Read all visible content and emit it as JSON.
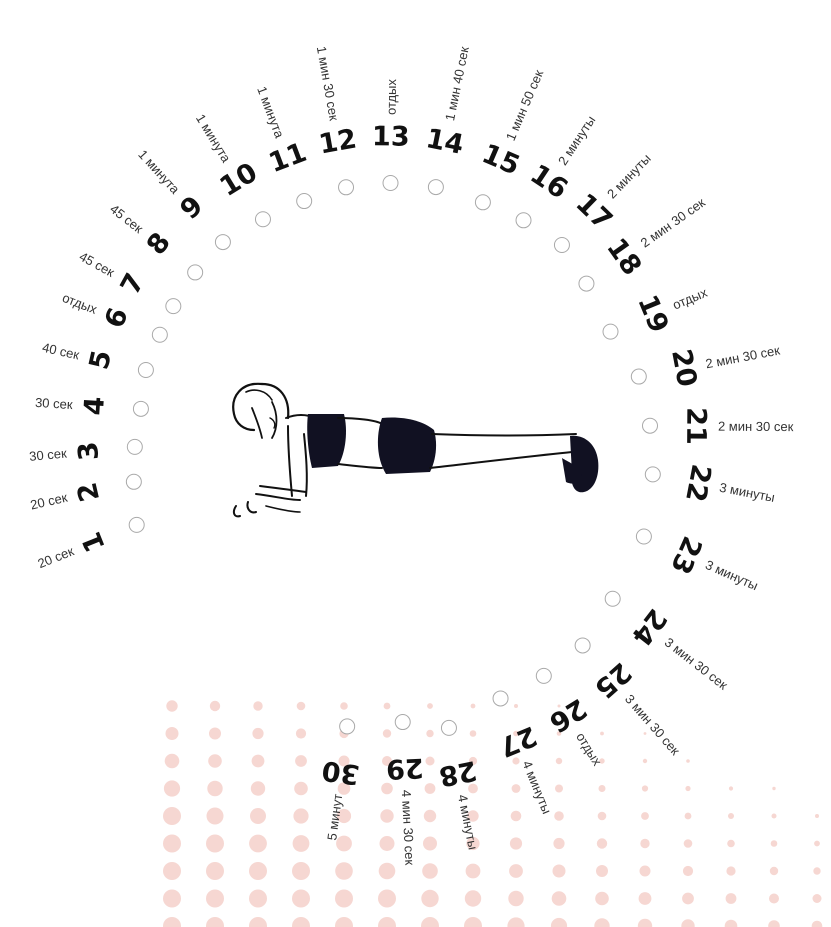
{
  "accent_dot_color": "#f6d7d2",
  "figure_icon": "plank-exercise-icon",
  "days": [
    {
      "day": "1",
      "duration": "20 сек"
    },
    {
      "day": "2",
      "duration": "20 сек"
    },
    {
      "day": "3",
      "duration": "30 сек"
    },
    {
      "day": "4",
      "duration": "30 сек"
    },
    {
      "day": "5",
      "duration": "40 сек"
    },
    {
      "day": "6",
      "duration": "отдых"
    },
    {
      "day": "7",
      "duration": "45 сек"
    },
    {
      "day": "8",
      "duration": "45 сек"
    },
    {
      "day": "9",
      "duration": "1 минута"
    },
    {
      "day": "10",
      "duration": "1 минута"
    },
    {
      "day": "11",
      "duration": "1 минута"
    },
    {
      "day": "12",
      "duration": "1 мин 30 сек"
    },
    {
      "day": "13",
      "duration": "отдых"
    },
    {
      "day": "14",
      "duration": "1 мин 40 сек"
    },
    {
      "day": "15",
      "duration": "1 мин 50 сек"
    },
    {
      "day": "16",
      "duration": "2 минуты"
    },
    {
      "day": "17",
      "duration": "2 минуты"
    },
    {
      "day": "18",
      "duration": "2 мин 30 сек"
    },
    {
      "day": "19",
      "duration": "отдых"
    },
    {
      "day": "20",
      "duration": "2 мин 30 сек"
    },
    {
      "day": "21",
      "duration": "2 мин 30 сек"
    },
    {
      "day": "22",
      "duration": "3 минуты"
    },
    {
      "day": "23",
      "duration": "3 минуты"
    },
    {
      "day": "24",
      "duration": "3 мин 30 сек"
    },
    {
      "day": "25",
      "duration": "3 мин 30 сек"
    },
    {
      "day": "26",
      "duration": "отдых"
    },
    {
      "day": "27",
      "duration": "4 минуты"
    },
    {
      "day": "28",
      "duration": "4 минуты"
    },
    {
      "day": "29",
      "duration": "4 мин 30 сек"
    },
    {
      "day": "30",
      "duration": "5 минут"
    }
  ]
}
